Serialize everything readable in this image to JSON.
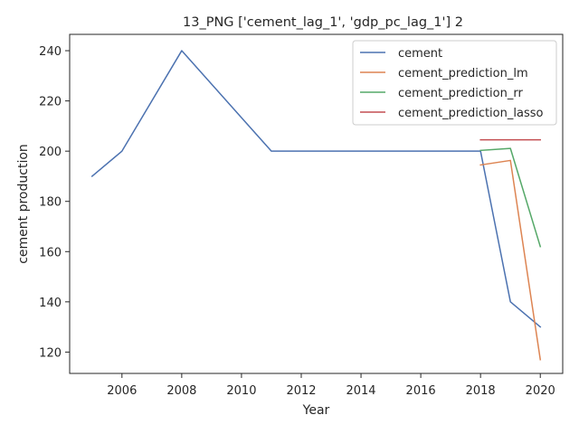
{
  "chart_data": {
    "type": "line",
    "title": "13_PNG ['cement_lag_1', 'gdp_pc_lag_1'] 2",
    "xlabel": "Year",
    "ylabel": "cement production",
    "xlim": [
      2004.25,
      2020.75
    ],
    "ylim": [
      111.5,
      246.5
    ],
    "xticks": [
      2006,
      2008,
      2010,
      2012,
      2014,
      2016,
      2018,
      2020
    ],
    "yticks": [
      120,
      140,
      160,
      180,
      200,
      220,
      240
    ],
    "grid": false,
    "legend_position": "top-right",
    "series": [
      {
        "name": "cement",
        "color": "#4c72b0",
        "x": [
          2005,
          2006,
          2008,
          2011,
          2018,
          2019,
          2020
        ],
        "y": [
          190,
          200,
          240,
          200,
          200,
          140,
          130
        ]
      },
      {
        "name": "cement_prediction_lm",
        "color": "#dd8452",
        "x": [
          2018,
          2019,
          2020
        ],
        "y": [
          194.5,
          196.3,
          117
        ]
      },
      {
        "name": "cement_prediction_rr",
        "color": "#55a868",
        "x": [
          2018,
          2019,
          2020
        ],
        "y": [
          200.3,
          201.1,
          162
        ]
      },
      {
        "name": "cement_prediction_lasso",
        "color": "#c44e52",
        "x": [
          2018,
          2019,
          2020
        ],
        "y": [
          204.5,
          204.5,
          204.5
        ]
      }
    ]
  }
}
